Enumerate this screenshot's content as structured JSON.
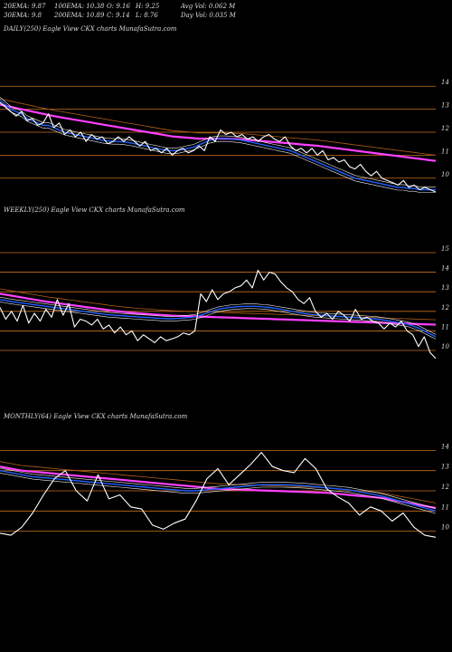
{
  "header": {
    "row1": [
      "20EMA: 9.87",
      "100EMA: 10.38",
      "O: 9.16",
      "H: 9.25",
      "Avg Vol: 0.062 M"
    ],
    "row2": [
      "30EMA: 9.8",
      "200EMA: 10.89",
      "C: 9.14",
      "L: 8.76",
      "Day Vol: 0.035 M"
    ]
  },
  "colors": {
    "background": "#000000",
    "price": "#ffffff",
    "ema_blue": "#2060ff",
    "ema_magenta": "#ff40ff",
    "ema_brown": "#b06018",
    "ema_white": "#f0f0f0",
    "level_line": "#c87020"
  },
  "chart_data": [
    {
      "type": "line",
      "title": "DAILY(250) Eagle  View  CKX  charts MunafaSutra.com",
      "yticks": [
        "14",
        "13",
        "12",
        "11",
        "10"
      ],
      "ylim": [
        9.4,
        14.6
      ],
      "series": [
        {
          "role": "price",
          "values": [
            13.3,
            13.1,
            12.9,
            12.7,
            12.9,
            12.5,
            12.6,
            12.3,
            12.4,
            12.8,
            12.2,
            12.4,
            11.9,
            12.1,
            11.8,
            12.0,
            11.6,
            11.9,
            11.7,
            11.8,
            11.5,
            11.6,
            11.8,
            11.6,
            11.8,
            11.6,
            11.4,
            11.6,
            11.2,
            11.3,
            11.1,
            11.3,
            11.0,
            11.2,
            11.3,
            11.1,
            11.2,
            11.4,
            11.2,
            11.8,
            11.6,
            12.1,
            11.9,
            12.0,
            11.8,
            11.9,
            11.7,
            11.8,
            11.6,
            11.8,
            11.9,
            11.7,
            11.6,
            11.8,
            11.4,
            11.2,
            11.3,
            11.1,
            11.3,
            11.0,
            11.2,
            10.8,
            10.9,
            10.7,
            10.8,
            10.5,
            10.4,
            10.6,
            10.3,
            10.1,
            10.3,
            10.0,
            9.9,
            9.8,
            9.7,
            9.9,
            9.6,
            9.7,
            9.5,
            9.6,
            9.5,
            9.4
          ]
        },
        {
          "role": "ema-short",
          "values": [
            13.4,
            13.2,
            13.0,
            12.9,
            12.8,
            12.6,
            12.5,
            12.4,
            12.3,
            12.3,
            12.2,
            12.1,
            12.0,
            11.95,
            11.9,
            11.85,
            11.8,
            11.75,
            11.7,
            11.65,
            11.62,
            11.6,
            11.6,
            11.58,
            11.55,
            11.5,
            11.45,
            11.4,
            11.35,
            11.3,
            11.25,
            11.2,
            11.2,
            11.2,
            11.25,
            11.3,
            11.35,
            11.45,
            11.55,
            11.65,
            11.7,
            11.72,
            11.72,
            11.7,
            11.68,
            11.65,
            11.6,
            11.55,
            11.5,
            11.45,
            11.4,
            11.35,
            11.3,
            11.25,
            11.2,
            11.1,
            11.0,
            10.9,
            10.8,
            10.7,
            10.6,
            10.5,
            10.4,
            10.3,
            10.2,
            10.1,
            10.0,
            9.95,
            9.9,
            9.85,
            9.8,
            9.75,
            9.7,
            9.65,
            9.6,
            9.6,
            9.55,
            9.55,
            9.5,
            9.5,
            9.5,
            9.5
          ]
        },
        {
          "role": "ema-long",
          "values": [
            13.2,
            13.15,
            13.1,
            13.05,
            13.0,
            12.95,
            12.9,
            12.85,
            12.8,
            12.75,
            12.7,
            12.66,
            12.62,
            12.58,
            12.54,
            12.5,
            12.46,
            12.42,
            12.38,
            12.34,
            12.3,
            12.26,
            12.22,
            12.18,
            12.14,
            12.1,
            12.06,
            12.02,
            11.98,
            11.94,
            11.9,
            11.86,
            11.82,
            11.8,
            11.78,
            11.76,
            11.74,
            11.72,
            11.72,
            11.72,
            11.72,
            11.72,
            11.72,
            11.71,
            11.7,
            11.69,
            11.67,
            11.65,
            11.63,
            11.61,
            11.59,
            11.57,
            11.55,
            11.53,
            11.51,
            11.49,
            11.47,
            11.45,
            11.43,
            11.41,
            11.38,
            11.35,
            11.32,
            11.29,
            11.26,
            11.23,
            11.2,
            11.17,
            11.14,
            11.11,
            11.08,
            11.05,
            11.02,
            10.99,
            10.96,
            10.93,
            10.9,
            10.87,
            10.84,
            10.81,
            10.78,
            10.75
          ]
        }
      ]
    },
    {
      "type": "line",
      "title": "WEEKLY(250) Eagle  View  CKX  charts MunafaSutra.com",
      "yticks": [
        "15",
        "14",
        "13",
        "12",
        "11",
        "10"
      ],
      "ylim": [
        9.4,
        15.6
      ],
      "series": [
        {
          "role": "price",
          "values": [
            12.2,
            11.6,
            12.0,
            11.5,
            12.3,
            11.4,
            11.9,
            11.5,
            12.1,
            11.7,
            12.6,
            11.8,
            12.4,
            11.2,
            11.6,
            11.5,
            11.3,
            11.6,
            11.1,
            11.3,
            10.9,
            11.2,
            10.8,
            11.0,
            10.5,
            10.8,
            10.6,
            10.4,
            10.7,
            10.5,
            10.6,
            10.7,
            10.9,
            10.8,
            11.0,
            12.9,
            12.5,
            13.1,
            12.6,
            12.9,
            13.0,
            13.2,
            13.3,
            13.6,
            13.2,
            14.1,
            13.6,
            14.0,
            13.9,
            13.5,
            13.2,
            13.0,
            12.6,
            12.4,
            12.7,
            12.0,
            11.7,
            11.9,
            11.6,
            12.0,
            11.8,
            11.5,
            12.1,
            11.6,
            11.7,
            11.5,
            11.4,
            11.1,
            11.4,
            11.2,
            11.5,
            11.0,
            10.8,
            10.2,
            10.7,
            9.9,
            9.6
          ]
        },
        {
          "role": "ema-short",
          "values": [
            12.6,
            12.55,
            12.5,
            12.46,
            12.42,
            12.38,
            12.34,
            12.3,
            12.26,
            12.22,
            12.18,
            12.14,
            12.1,
            12.06,
            12.02,
            11.98,
            11.94,
            11.9,
            11.86,
            11.82,
            11.8,
            11.78,
            11.76,
            11.74,
            11.72,
            11.7,
            11.68,
            11.66,
            11.64,
            11.62,
            11.62,
            11.64,
            11.66,
            11.68,
            11.72,
            11.8,
            11.9,
            12.0,
            12.1,
            12.15,
            12.2,
            12.22,
            12.24,
            12.26,
            12.26,
            12.25,
            12.22,
            12.2,
            12.15,
            12.1,
            12.05,
            12.0,
            11.95,
            11.9,
            11.85,
            11.82,
            11.8,
            11.78,
            11.76,
            11.74,
            11.72,
            11.7,
            11.68,
            11.66,
            11.64,
            11.62,
            11.6,
            11.55,
            11.5,
            11.45,
            11.4,
            11.35,
            11.25,
            11.15,
            11.0,
            10.85,
            10.7
          ]
        },
        {
          "role": "ema-long",
          "values": [
            12.9,
            12.85,
            12.8,
            12.75,
            12.7,
            12.65,
            12.6,
            12.55,
            12.5,
            12.46,
            12.42,
            12.38,
            12.34,
            12.3,
            12.26,
            12.22,
            12.18,
            12.14,
            12.1,
            12.06,
            12.02,
            11.99,
            11.96,
            11.93,
            11.9,
            11.88,
            11.86,
            11.84,
            11.82,
            11.8,
            11.78,
            11.77,
            11.76,
            11.75,
            11.74,
            11.73,
            11.72,
            11.71,
            11.7,
            11.69,
            11.68,
            11.67,
            11.66,
            11.65,
            11.64,
            11.63,
            11.62,
            11.61,
            11.6,
            11.59,
            11.58,
            11.57,
            11.56,
            11.55,
            11.54,
            11.53,
            11.52,
            11.51,
            11.5,
            11.49,
            11.48,
            11.47,
            11.46,
            11.45,
            11.44,
            11.43,
            11.42,
            11.41,
            11.4,
            11.39,
            11.38,
            11.37,
            11.36,
            11.35,
            11.34,
            11.33,
            11.32
          ]
        }
      ]
    },
    {
      "type": "line",
      "title": "MONTHLY(64) Eagle  View  CKX  charts MunafaSutra.com",
      "yticks": [
        "14",
        "13",
        "12",
        "11",
        "10"
      ],
      "ylim": [
        9.4,
        14.6
      ],
      "series": [
        {
          "role": "price",
          "values": [
            9.9,
            9.8,
            10.2,
            10.9,
            11.8,
            12.6,
            13.0,
            12.0,
            11.5,
            12.8,
            11.6,
            11.8,
            11.2,
            11.1,
            10.3,
            10.1,
            10.4,
            10.6,
            11.5,
            12.6,
            13.1,
            12.3,
            12.8,
            13.3,
            13.9,
            13.2,
            13.0,
            12.9,
            13.6,
            13.1,
            12.1,
            11.7,
            11.4,
            10.8,
            11.2,
            11.0,
            10.5,
            10.9,
            10.2,
            9.8,
            9.7
          ]
        },
        {
          "role": "ema-short",
          "values": [
            13.0,
            12.9,
            12.8,
            12.7,
            12.65,
            12.6,
            12.55,
            12.5,
            12.45,
            12.4,
            12.35,
            12.3,
            12.25,
            12.2,
            12.15,
            12.1,
            12.05,
            12.0,
            12.0,
            12.05,
            12.1,
            12.15,
            12.2,
            12.25,
            12.3,
            12.3,
            12.3,
            12.28,
            12.25,
            12.2,
            12.15,
            12.1,
            12.05,
            11.95,
            11.85,
            11.75,
            11.6,
            11.45,
            11.3,
            11.15,
            11.0
          ]
        },
        {
          "role": "ema-long",
          "values": [
            13.2,
            13.1,
            13.0,
            12.95,
            12.9,
            12.85,
            12.8,
            12.75,
            12.7,
            12.65,
            12.6,
            12.55,
            12.5,
            12.45,
            12.4,
            12.35,
            12.3,
            12.25,
            12.2,
            12.15,
            12.1,
            12.08,
            12.06,
            12.04,
            12.02,
            12.0,
            11.98,
            11.96,
            11.94,
            11.92,
            11.9,
            11.85,
            11.8,
            11.75,
            11.7,
            11.65,
            11.55,
            11.45,
            11.35,
            11.25,
            11.15
          ]
        }
      ]
    }
  ]
}
